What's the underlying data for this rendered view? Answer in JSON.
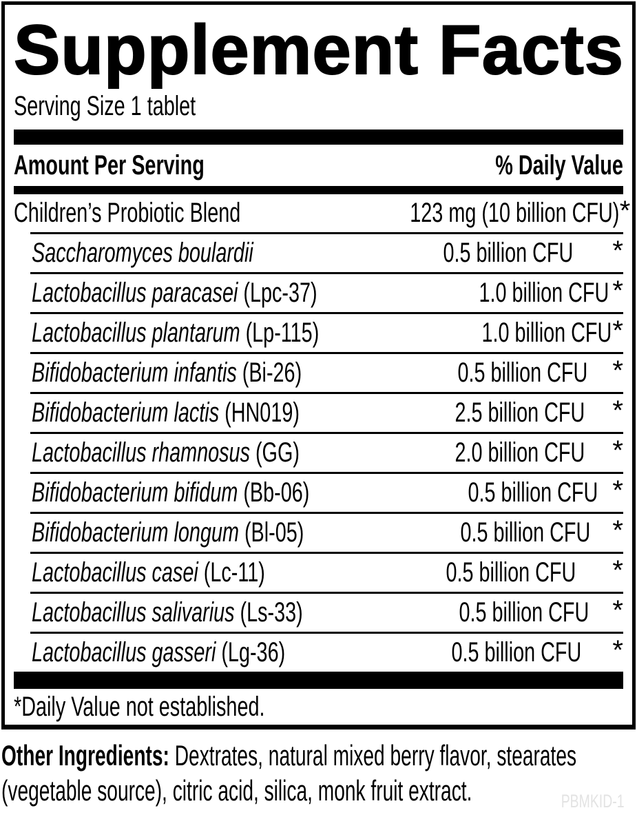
{
  "panel": {
    "title": "Supplement Facts",
    "serving_size": "Serving Size 1 tablet",
    "header": {
      "amount_per_serving": "Amount Per Serving",
      "daily_value": "% Daily Value"
    },
    "rows": [
      {
        "name": "Children’s Probiotic Blend",
        "strain": "",
        "amount": "123 mg (10 billion CFU)",
        "dv": "*"
      },
      {
        "name": "Saccharomyces boulardii",
        "strain": "",
        "amount": "0.5 billion CFU",
        "dv": "*"
      },
      {
        "name": "Lactobacillus paracasei",
        "strain": "(Lpc-37)",
        "amount": "1.0 billion CFU",
        "dv": "*"
      },
      {
        "name": "Lactobacillus plantarum",
        "strain": "(Lp-115)",
        "amount": "1.0 billion CFU",
        "dv": "*"
      },
      {
        "name": "Bifidobacterium infantis",
        "strain": "(Bi-26)",
        "amount": "0.5 billion CFU",
        "dv": "*"
      },
      {
        "name": "Bifidobacterium lactis",
        "strain": "(HN019)",
        "amount": "2.5 billion CFU",
        "dv": "*"
      },
      {
        "name": "Lactobacillus rhamnosus",
        "strain": "(GG)",
        "amount": "2.0 billion CFU",
        "dv": "*"
      },
      {
        "name": "Bifidobacterium bifidum",
        "strain": "(Bb-06)",
        "amount": "0.5 billion CFU",
        "dv": "*"
      },
      {
        "name": "Bifidobacterium longum",
        "strain": "(Bl-05)",
        "amount": "0.5 billion CFU",
        "dv": "*"
      },
      {
        "name": "Lactobacillus casei",
        "strain": "(Lc-11)",
        "amount": "0.5 billion CFU",
        "dv": "*"
      },
      {
        "name": "Lactobacillus salivarius",
        "strain": "(Ls-33)",
        "amount": "0.5 billion CFU",
        "dv": "*"
      },
      {
        "name": "Lactobacillus gasseri",
        "strain": "(Lg-36)",
        "amount": "0.5 billion CFU",
        "dv": "*"
      }
    ],
    "footnote": "*Daily Value not established."
  },
  "other_ingredients": {
    "label": "Other Ingredients:",
    "line1": "Dextrates, natural mixed berry flavor, stearates",
    "line2": "(vegetable source), citric acid, silica, monk fruit extract."
  },
  "footer_code": "PBMKID-1",
  "colors": {
    "text": "#000000",
    "background": "#ffffff",
    "rules_and_bars": "#000000",
    "footer_code_gray": "#e3e3e3"
  }
}
